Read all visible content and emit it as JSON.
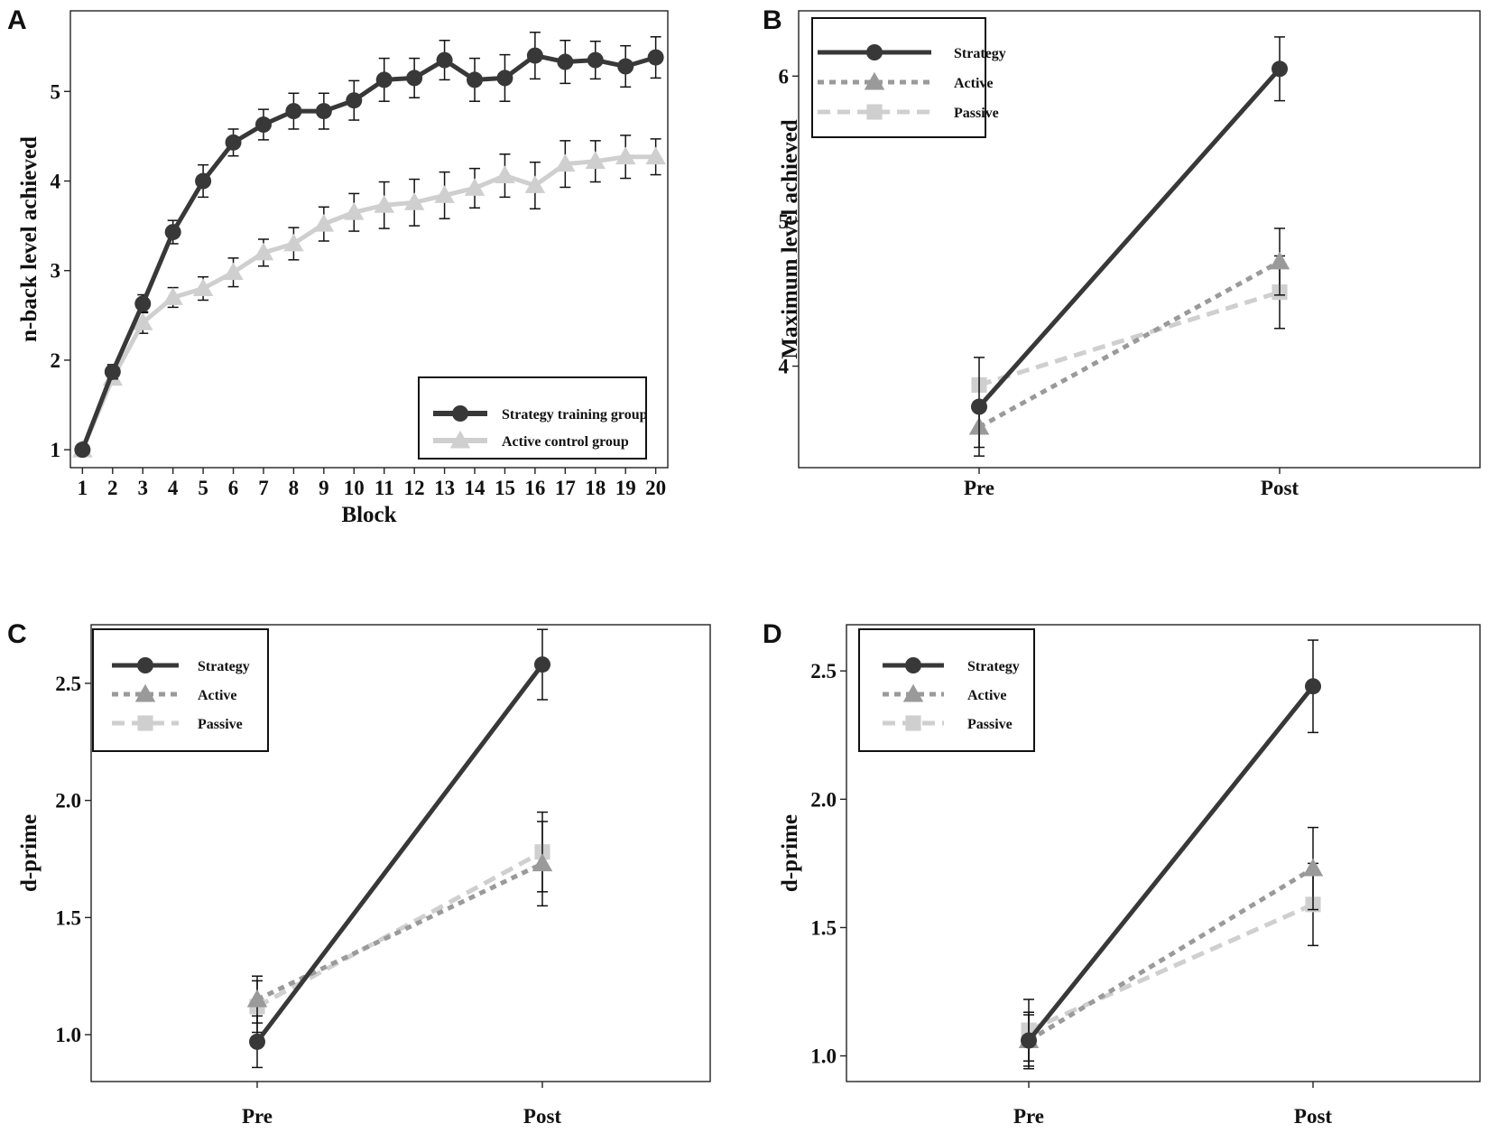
{
  "chart_data": [
    {
      "panel": "A",
      "type": "line",
      "xlabel": "Block",
      "ylabel": "n-back level achieved",
      "xlim": [
        0.6,
        20.4
      ],
      "ylim": [
        0.8,
        5.9
      ],
      "xticks": [
        1,
        2,
        3,
        4,
        5,
        6,
        7,
        8,
        9,
        10,
        11,
        12,
        13,
        14,
        15,
        16,
        17,
        18,
        19,
        20
      ],
      "yticks": [
        1,
        2,
        3,
        4,
        5
      ],
      "ytick_labels": [
        "1",
        "2",
        "3",
        "4",
        "5"
      ],
      "legend_position": "bottom-right",
      "grid": false,
      "x": [
        1,
        2,
        3,
        4,
        5,
        6,
        7,
        8,
        9,
        10,
        11,
        12,
        13,
        14,
        15,
        16,
        17,
        18,
        19,
        20
      ],
      "series": [
        {
          "name": "Strategy training group",
          "color": "#383838",
          "marker": "circle",
          "dash": "solid",
          "values": [
            1.0,
            1.87,
            2.63,
            3.43,
            4.0,
            4.43,
            4.63,
            4.78,
            4.78,
            4.9,
            5.13,
            5.15,
            5.35,
            5.13,
            5.15,
            5.4,
            5.33,
            5.35,
            5.28,
            5.38
          ],
          "errors": [
            0.0,
            0.08,
            0.1,
            0.13,
            0.18,
            0.15,
            0.17,
            0.2,
            0.2,
            0.22,
            0.24,
            0.22,
            0.22,
            0.24,
            0.26,
            0.26,
            0.24,
            0.21,
            0.23,
            0.23
          ]
        },
        {
          "name": "Active control group",
          "color": "#cfcfcf",
          "marker": "triangle",
          "dash": "solid",
          "values": [
            1.0,
            1.8,
            2.42,
            2.7,
            2.8,
            2.98,
            3.2,
            3.3,
            3.52,
            3.65,
            3.73,
            3.76,
            3.84,
            3.92,
            4.06,
            3.95,
            4.19,
            4.22,
            4.27,
            4.27
          ],
          "errors": [
            0.0,
            0.06,
            0.12,
            0.11,
            0.13,
            0.16,
            0.15,
            0.18,
            0.19,
            0.21,
            0.26,
            0.26,
            0.26,
            0.22,
            0.24,
            0.26,
            0.26,
            0.23,
            0.24,
            0.2
          ]
        }
      ]
    },
    {
      "panel": "B",
      "type": "line",
      "xlabel": "",
      "ylabel": "Maximum level achieved",
      "categories": [
        "Pre",
        "Post"
      ],
      "ylim": [
        3.3,
        6.45
      ],
      "yticks": [
        4,
        5,
        6
      ],
      "ytick_labels": [
        "4",
        "5",
        "6"
      ],
      "legend_position": "top-left",
      "grid": false,
      "series": [
        {
          "name": "Strategy",
          "color": "#383838",
          "marker": "circle",
          "dash": "solid",
          "values": [
            3.72,
            6.05
          ],
          "errors": [
            0.34,
            0.22
          ]
        },
        {
          "name": "Active",
          "color": "#9a9a9a",
          "marker": "triangle",
          "dash": "short",
          "values": [
            3.58,
            4.72
          ],
          "errors": [
            0.14,
            0.23
          ]
        },
        {
          "name": "Passive",
          "color": "#cfcfcf",
          "marker": "square",
          "dash": "long",
          "values": [
            3.87,
            4.51
          ],
          "errors": [
            0.0,
            0.25
          ]
        }
      ]
    },
    {
      "panel": "C",
      "type": "line",
      "xlabel": "",
      "ylabel": "d-prime",
      "categories": [
        "Pre",
        "Post"
      ],
      "ylim": [
        0.8,
        2.75
      ],
      "yticks": [
        1.0,
        1.5,
        2.0,
        2.5
      ],
      "ytick_labels": [
        "1.0",
        "1.5",
        "2.0",
        "2.5"
      ],
      "legend_position": "top-left",
      "grid": false,
      "series": [
        {
          "name": "Strategy",
          "color": "#383838",
          "marker": "circle",
          "dash": "solid",
          "values": [
            0.97,
            2.58
          ],
          "errors": [
            0.11,
            0.15
          ]
        },
        {
          "name": "Active",
          "color": "#9a9a9a",
          "marker": "triangle",
          "dash": "short",
          "values": [
            1.15,
            1.73
          ],
          "errors": [
            0.1,
            0.18
          ]
        },
        {
          "name": "Passive",
          "color": "#cfcfcf",
          "marker": "square",
          "dash": "long",
          "values": [
            1.12,
            1.78
          ],
          "errors": [
            0.11,
            0.17
          ]
        }
      ]
    },
    {
      "panel": "D",
      "type": "line",
      "xlabel": "",
      "ylabel": "d-prime",
      "categories": [
        "Pre",
        "Post"
      ],
      "ylim": [
        0.9,
        2.68
      ],
      "yticks": [
        1.0,
        1.5,
        2.0,
        2.5
      ],
      "ytick_labels": [
        "1.0",
        "1.5",
        "2.0",
        "2.5"
      ],
      "legend_position": "top-left",
      "grid": false,
      "series": [
        {
          "name": "Strategy",
          "color": "#383838",
          "marker": "circle",
          "dash": "solid",
          "values": [
            1.06,
            2.44
          ],
          "errors": [
            0.11,
            0.18
          ]
        },
        {
          "name": "Active",
          "color": "#9a9a9a",
          "marker": "triangle",
          "dash": "short",
          "values": [
            1.06,
            1.73
          ],
          "errors": [
            0.1,
            0.16
          ]
        },
        {
          "name": "Passive",
          "color": "#cfcfcf",
          "marker": "square",
          "dash": "long",
          "values": [
            1.1,
            1.59
          ],
          "errors": [
            0.12,
            0.16
          ]
        }
      ]
    }
  ]
}
